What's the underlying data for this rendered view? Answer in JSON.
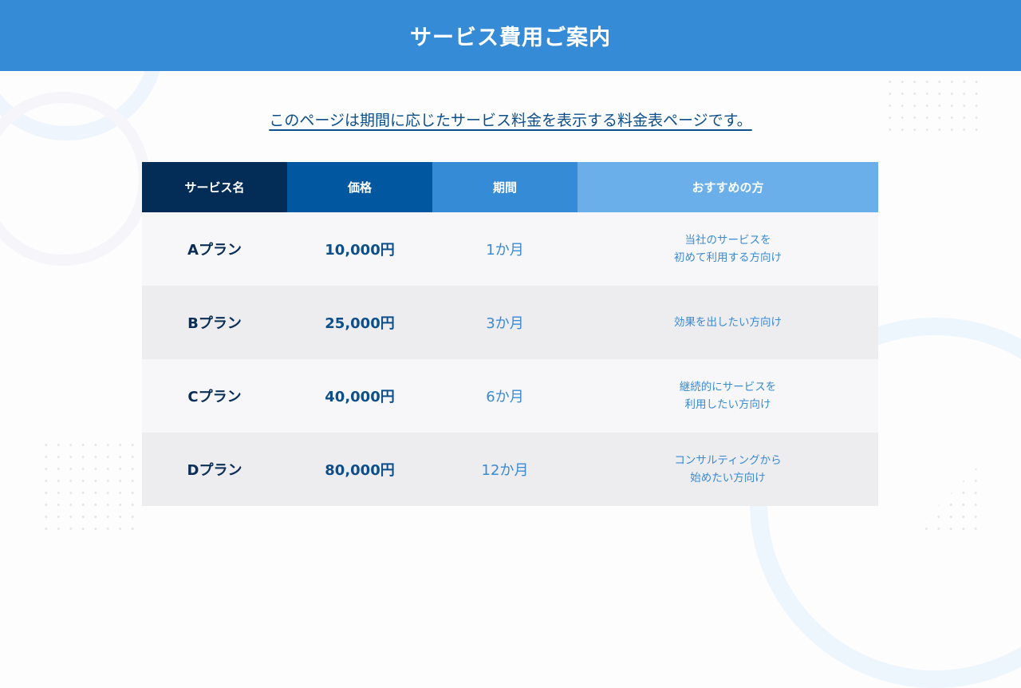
{
  "header": {
    "title": "サービス費用ご案内"
  },
  "subtitle": "このページは期間に応じたサービス料金を表示する料金表ページです。",
  "table": {
    "columns": [
      "サービス名",
      "価格",
      "期間",
      "おすすめの方"
    ],
    "rows": [
      {
        "name": "Aプラン",
        "price": "10,000円",
        "period": "1か月",
        "recommended": [
          "当社のサービスを",
          "初めて利用する方向け"
        ]
      },
      {
        "name": "Bプラン",
        "price": "25,000円",
        "period": "3か月",
        "recommended": [
          "効果を出したい方向け"
        ]
      },
      {
        "name": "Cプラン",
        "price": "40,000円",
        "period": "6か月",
        "recommended": [
          "継続的にサービスを",
          "利用したい方向け"
        ]
      },
      {
        "name": "Dプラン",
        "price": "80,000円",
        "period": "12か月",
        "recommended": [
          "コンサルティングから",
          "始めたい方向け"
        ]
      }
    ]
  },
  "colors": {
    "header_bar": "#368bd6",
    "col_name": "#032d57",
    "col_price": "#0158a0",
    "col_period": "#368bd6",
    "col_recommended": "#6aafea",
    "row_light": "#f7f7f9",
    "row_dark": "#edecef"
  }
}
